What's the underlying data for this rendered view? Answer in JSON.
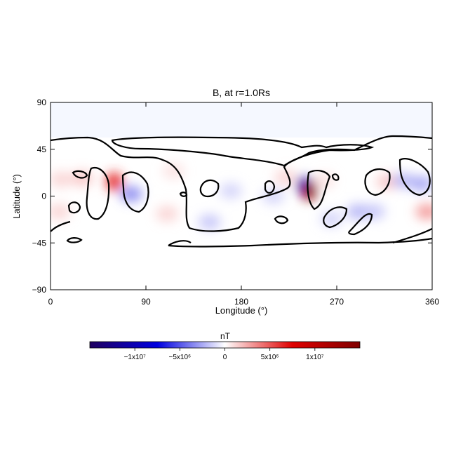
{
  "chart_data": {
    "type": "heatmap",
    "title": "B, at r=1.0Rs",
    "xlabel": "Longitude (°)",
    "ylabel": "Latitude (°)",
    "xlim": [
      0,
      360
    ],
    "ylim": [
      -90,
      90
    ],
    "x_ticks": [
      0,
      90,
      180,
      270,
      360
    ],
    "x_tick_labels": [
      "0",
      "90",
      "180",
      "270",
      "360"
    ],
    "y_ticks": [
      90,
      45,
      0,
      -45,
      -90
    ],
    "y_tick_labels": [
      "90",
      "45",
      "0",
      "−45",
      "−90"
    ],
    "colorbar": {
      "label": "nT",
      "range": [
        -15000000.0,
        15000000.0
      ],
      "ticks": [
        -10000000.0,
        -5000000.0,
        0,
        5000000.0,
        10000000.0
      ],
      "tick_labels": [
        "−1x10⁷",
        "−5x10⁶",
        "0",
        "5x10⁶",
        "1x10⁷"
      ],
      "colors": [
        "#200060",
        "#0000e0",
        "#ffffff",
        "#e00000",
        "#800000"
      ]
    },
    "features": [
      {
        "lon": 240,
        "lat": 10,
        "value": -9000000
      },
      {
        "lon": 244,
        "lat": 5,
        "value": 14000000
      },
      {
        "lon": 60,
        "lat": 14,
        "value": 6000000
      },
      {
        "lon": 76,
        "lat": 2,
        "value": -4000000
      },
      {
        "lon": 30,
        "lat": 17,
        "value": 2000000
      },
      {
        "lon": 10,
        "lat": 16,
        "value": 1500000
      },
      {
        "lon": 8,
        "lat": -15,
        "value": 1500000
      },
      {
        "lon": 110,
        "lat": -17,
        "value": 1500000
      },
      {
        "lon": 116,
        "lat": 24,
        "value": 1000000
      },
      {
        "lon": 150,
        "lat": -25,
        "value": -2000000
      },
      {
        "lon": 170,
        "lat": 5,
        "value": -1500000
      },
      {
        "lon": 210,
        "lat": 0,
        "value": -1500000
      },
      {
        "lon": 222,
        "lat": 18,
        "value": 1500000
      },
      {
        "lon": 290,
        "lat": -15,
        "value": -2500000
      },
      {
        "lon": 305,
        "lat": -15,
        "value": -2000000
      },
      {
        "lon": 318,
        "lat": 14,
        "value": 2000000
      },
      {
        "lon": 333,
        "lat": 15,
        "value": -2500000
      },
      {
        "lon": 350,
        "lat": 12,
        "value": -3000000
      },
      {
        "lon": 355,
        "lat": -15,
        "value": 3500000
      },
      {
        "lon": 265,
        "lat": -22,
        "value": -1500000
      },
      {
        "lon": 258,
        "lat": 15,
        "value": 1000000
      }
    ]
  }
}
